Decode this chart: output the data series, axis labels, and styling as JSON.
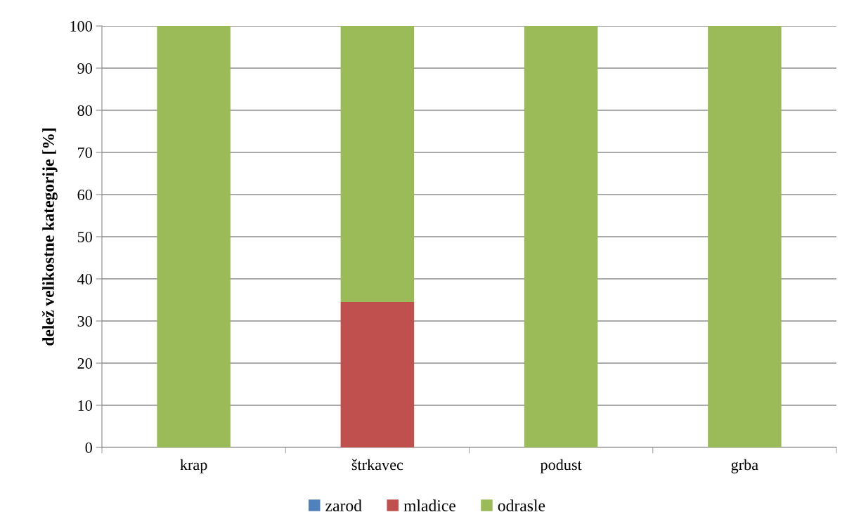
{
  "chart_data": {
    "type": "bar",
    "stacked": true,
    "ylabel": "delež velikostne kategorije [%]",
    "categories": [
      "krap",
      "štrkavec",
      "podust",
      "grba"
    ],
    "series": [
      {
        "name": "zarod",
        "color": "#4f81bd",
        "values": [
          0,
          0,
          0,
          0
        ]
      },
      {
        "name": "mladice",
        "color": "#c0504d",
        "values": [
          0,
          34.5,
          0,
          0
        ]
      },
      {
        "name": "odrasle",
        "color": "#9bbb59",
        "values": [
          100,
          65.5,
          100,
          100
        ]
      }
    ],
    "ylim": [
      0,
      100
    ],
    "yticks": [
      0,
      10,
      20,
      30,
      40,
      50,
      60,
      70,
      80,
      90,
      100
    ],
    "grid": "y",
    "legend": "bottom"
  }
}
